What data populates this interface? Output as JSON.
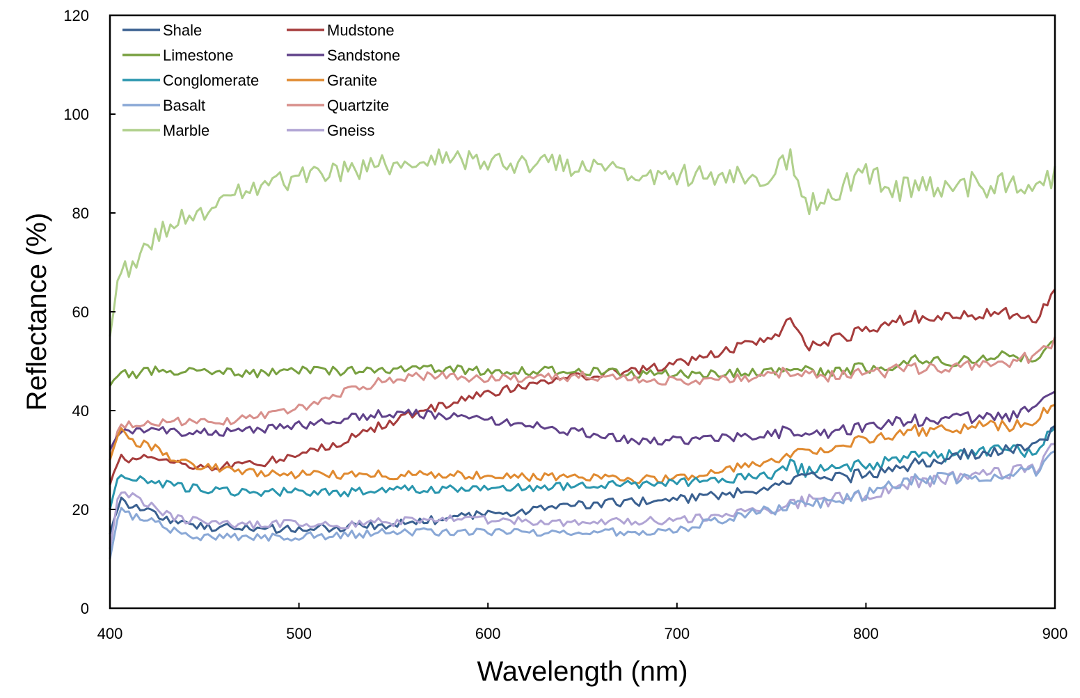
{
  "chart_data": {
    "type": "line",
    "title": "",
    "xlabel": "Wavelength (nm)",
    "ylabel": "Reflectance (%)",
    "xlim": [
      400,
      900
    ],
    "ylim": [
      0,
      120
    ],
    "x_ticks": [
      400,
      500,
      600,
      700,
      800,
      900
    ],
    "y_ticks": [
      0,
      20,
      40,
      60,
      80,
      100,
      120
    ],
    "x_tick_labels": [
      "400",
      "500",
      "600",
      "700",
      "800",
      "900"
    ],
    "y_tick_labels": [
      "0",
      "20",
      "40",
      "60",
      "80",
      "100",
      "120"
    ],
    "grid": false,
    "legend_position": "top-left",
    "x": [
      400,
      405,
      410,
      420,
      430,
      440,
      450,
      475,
      500,
      525,
      550,
      575,
      600,
      625,
      650,
      675,
      700,
      725,
      750,
      760,
      770,
      775,
      800,
      825,
      850,
      875,
      890,
      900
    ],
    "series": [
      {
        "name": "Shale",
        "color": "#3a6090",
        "values": [
          15,
          22,
          21,
          20,
          18,
          17,
          16.5,
          16,
          16,
          16.5,
          17,
          18,
          19,
          20,
          21,
          21.5,
          22,
          23,
          24.5,
          25.5,
          27,
          26,
          27,
          29,
          31,
          32,
          33,
          36
        ]
      },
      {
        "name": "Mudstone",
        "color": "#a63c3c",
        "values": [
          25,
          31,
          30,
          31,
          30,
          29,
          28.5,
          29,
          31,
          34,
          38,
          41,
          43.5,
          45.5,
          47,
          48,
          49.5,
          52,
          55,
          58,
          53,
          54,
          56,
          59,
          59,
          60,
          58,
          64
        ]
      },
      {
        "name": "Limestone",
        "color": "#78a040",
        "values": [
          45,
          48,
          47,
          48,
          48,
          48,
          48,
          47.5,
          48,
          48,
          48.5,
          48.5,
          48,
          48,
          48,
          47.5,
          47.5,
          47.5,
          48,
          49,
          48,
          48,
          48.5,
          50,
          50,
          51,
          51,
          54
        ]
      },
      {
        "name": "Sandstone",
        "color": "#60428a",
        "values": [
          32,
          36,
          36,
          36,
          36,
          35.5,
          35.5,
          36,
          37,
          38.5,
          39.5,
          39,
          38,
          37,
          35.5,
          34,
          34,
          34.5,
          35,
          36,
          35.5,
          35.5,
          36.5,
          38,
          38.5,
          39,
          40,
          44
        ]
      },
      {
        "name": "Conglomerate",
        "color": "#2a96ae",
        "values": [
          20,
          28,
          26,
          26,
          25,
          24.5,
          24,
          23.5,
          23.5,
          23.5,
          24,
          24,
          24,
          24.5,
          25,
          25,
          25.5,
          26,
          27,
          29,
          27.5,
          28,
          29,
          30.5,
          31,
          32,
          31,
          37
        ]
      },
      {
        "name": "Granite",
        "color": "#e08a30",
        "values": [
          30,
          36,
          34,
          33,
          31,
          29.5,
          28.5,
          27.5,
          27,
          27,
          27,
          27,
          27,
          26.5,
          26.5,
          26,
          26.5,
          28,
          30,
          31,
          32,
          32.5,
          34,
          36,
          36.5,
          37,
          38,
          42
        ]
      },
      {
        "name": "Basalt",
        "color": "#8aa8d6",
        "values": [
          10,
          20,
          19,
          18,
          16,
          15,
          14.5,
          14.5,
          14.5,
          15,
          15.5,
          15.5,
          15.5,
          15.5,
          15.5,
          15.5,
          16,
          18,
          20,
          21,
          22,
          21.5,
          23,
          26,
          26.5,
          27,
          28,
          33
        ]
      },
      {
        "name": "Quartzite",
        "color": "#d8908c",
        "values": [
          30,
          37,
          37,
          37,
          38,
          37.5,
          37.5,
          38.5,
          40.5,
          44,
          46.5,
          47,
          46.5,
          46.5,
          47,
          46.5,
          46,
          46.5,
          47,
          48,
          47,
          47,
          47.5,
          48.5,
          49,
          50,
          51,
          54
        ]
      },
      {
        "name": "Marble",
        "color": "#b0d08c",
        "values": [
          55,
          68,
          69,
          73,
          77,
          79,
          80,
          85,
          87,
          88.5,
          90,
          91,
          90.5,
          90,
          89.5,
          88.5,
          87.5,
          88,
          87,
          93,
          81,
          84,
          87,
          84,
          86,
          86,
          86,
          88
        ]
      },
      {
        "name": "Gneiss",
        "color": "#b0a4d4",
        "values": [
          12,
          24,
          23,
          21,
          19,
          18,
          17.5,
          17,
          17,
          17,
          17.5,
          18,
          18,
          17.5,
          17.5,
          17.5,
          18,
          19,
          20,
          21,
          22,
          21.5,
          23,
          25.5,
          26.5,
          27.5,
          28,
          33
        ]
      }
    ]
  }
}
